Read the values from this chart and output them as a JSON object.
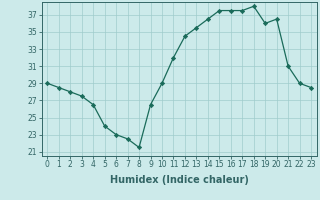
{
  "x": [
    0,
    1,
    2,
    3,
    4,
    5,
    6,
    7,
    8,
    9,
    10,
    11,
    12,
    13,
    14,
    15,
    16,
    17,
    18,
    19,
    20,
    21,
    22,
    23
  ],
  "y": [
    29,
    28.5,
    28,
    27.5,
    26.5,
    24,
    23,
    22.5,
    21.5,
    26.5,
    29,
    32,
    34.5,
    35.5,
    36.5,
    37.5,
    37.5,
    37.5,
    38,
    36,
    36.5,
    31,
    29,
    28.5
  ],
  "line_color": "#1a6b5a",
  "marker": "D",
  "marker_size": 2.2,
  "bg_color": "#cceaea",
  "grid_color": "#a0cccc",
  "xlabel": "Humidex (Indice chaleur)",
  "xlim": [
    -0.5,
    23.5
  ],
  "ylim": [
    20.5,
    38.5
  ],
  "yticks": [
    21,
    23,
    25,
    27,
    29,
    31,
    33,
    35,
    37
  ],
  "xticks": [
    0,
    1,
    2,
    3,
    4,
    5,
    6,
    7,
    8,
    9,
    10,
    11,
    12,
    13,
    14,
    15,
    16,
    17,
    18,
    19,
    20,
    21,
    22,
    23
  ],
  "axis_fontsize": 6.5,
  "tick_fontsize": 5.5,
  "xlabel_fontsize": 7.0,
  "line_width": 0.9,
  "spine_color": "#336666"
}
